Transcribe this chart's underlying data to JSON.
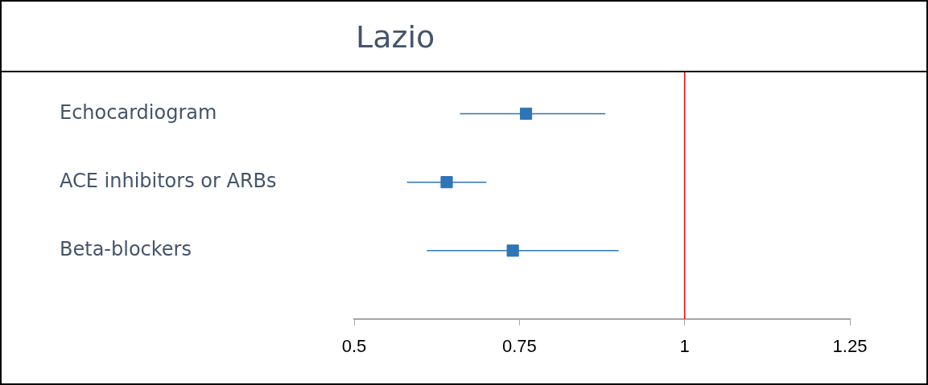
{
  "chart_data": {
    "type": "scatter",
    "title": "Lazio",
    "orientation": "horizontal",
    "categories": [
      "Echocardiogram",
      "ACE inhibitors or ARBs",
      "Beta-blockers"
    ],
    "values": [
      0.76,
      0.64,
      0.74
    ],
    "errors": [
      [
        0.66,
        0.88
      ],
      [
        0.58,
        0.7
      ],
      [
        0.61,
        0.9
      ]
    ],
    "color": "#2e75b6",
    "marker": "square",
    "xlim": [
      0.5,
      1.25
    ],
    "xticks": [
      0.5,
      0.75,
      1,
      1.25
    ],
    "ref_lines": [
      {
        "axis": "x",
        "value": 1,
        "color": "#ff0000"
      }
    ]
  }
}
